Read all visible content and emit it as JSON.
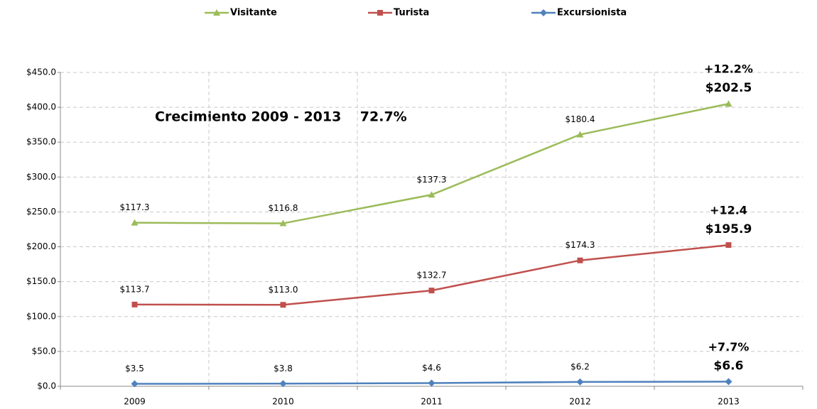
{
  "chart_data": {
    "type": "line",
    "stacked": true,
    "categories": [
      "2009",
      "2010",
      "2011",
      "2012",
      "2013"
    ],
    "series": [
      {
        "name": "Excursionista",
        "color": "#4f81bd",
        "marker": "diamond",
        "values": [
          3.5,
          3.8,
          4.6,
          6.2,
          6.6
        ],
        "value_labels": [
          "$3.5",
          "$3.8",
          "$4.6",
          "$6.2",
          "$6.6"
        ],
        "change_label": "+7.7%"
      },
      {
        "name": "Turista",
        "color": "#c0504d",
        "marker": "square",
        "values": [
          113.7,
          113.0,
          132.7,
          174.3,
          195.9
        ],
        "value_labels": [
          "$113.7",
          "$113.0",
          "$132.7",
          "$174.3",
          "$195.9"
        ],
        "change_label": "+12.4"
      },
      {
        "name": "Visitante",
        "color": "#9bbb59",
        "marker": "triangle",
        "values": [
          117.3,
          116.8,
          137.3,
          180.4,
          202.5
        ],
        "value_labels": [
          "$117.3",
          "$116.8",
          "$137.3",
          "$180.4",
          "$202.5"
        ],
        "change_label": "+12.2%"
      }
    ],
    "legend_order": [
      2,
      1,
      0
    ],
    "annotation": "Crecimiento 2009 - 2013    72.7%",
    "ylim": [
      0,
      450
    ],
    "yticks": [
      {
        "value": 0,
        "label": "$0.0"
      },
      {
        "value": 50,
        "label": "$50.0"
      },
      {
        "value": 100,
        "label": "$100.0"
      },
      {
        "value": 150,
        "label": "$150.0"
      },
      {
        "value": 200,
        "label": "$200.0"
      },
      {
        "value": 250,
        "label": "$250.0"
      },
      {
        "value": 300,
        "label": "$300.0"
      },
      {
        "value": 350,
        "label": "$350.0"
      },
      {
        "value": 400,
        "label": "$400.0"
      },
      {
        "value": 450,
        "label": "$450.0"
      }
    ],
    "grid": true,
    "legend": "top"
  }
}
